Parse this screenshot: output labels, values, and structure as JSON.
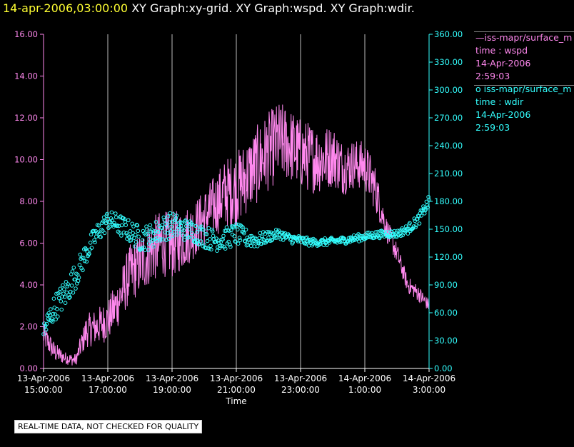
{
  "header": {
    "timestamp": "14-apr-2006,03:00:00",
    "description": "XY Graph:xy-grid.  XY Graph:wspd.  XY Graph:wdir."
  },
  "legend": {
    "wspd": {
      "line1": "iss-mapr/surface_m",
      "line2": "time : wspd",
      "line3": "14-Apr-2006",
      "line4": "2:59:03"
    },
    "wdir": {
      "line1": "iss-mapr/surface_m",
      "line2": "time : wdir",
      "line3": "14-Apr-2006",
      "line4": "2:59:03"
    }
  },
  "footer": {
    "quality_note": "REAL-TIME DATA, NOT CHECKED FOR QUALITY"
  },
  "colors": {
    "wspd": "#ff88ee",
    "wdir": "#33ffff",
    "grid": "#bbbbbb",
    "axis_left": "#ff88ee",
    "axis_right": "#33ffff",
    "timestamp": "#ffff33"
  },
  "chart_data": {
    "type": "line",
    "xlabel": "Time",
    "xlim_hours_since_start": [
      0,
      12
    ],
    "x_ticks": [
      {
        "date": "13-Apr-2006",
        "time": "15:00:00"
      },
      {
        "date": "13-Apr-2006",
        "time": "17:00:00"
      },
      {
        "date": "13-Apr-2006",
        "time": "19:00:00"
      },
      {
        "date": "13-Apr-2006",
        "time": "21:00:00"
      },
      {
        "date": "13-Apr-2006",
        "time": "23:00:00"
      },
      {
        "date": "14-Apr-2006",
        "time": "1:00:00"
      },
      {
        "date": "14-Apr-2006",
        "time": "3:00:00"
      }
    ],
    "left_axis": {
      "ylim": [
        0,
        16
      ],
      "ticks": [
        "0.00",
        "2.00",
        "4.00",
        "6.00",
        "8.00",
        "10.00",
        "12.00",
        "14.00",
        "16.00"
      ]
    },
    "right_axis": {
      "ylim": [
        0,
        360
      ],
      "ticks": [
        "0.00",
        "30.00",
        "60.00",
        "90.00",
        "120.00",
        "150.00",
        "180.00",
        "210.00",
        "240.00",
        "270.00",
        "300.00",
        "330.00",
        "360.00"
      ]
    },
    "grid": "vertical",
    "series": [
      {
        "name": "iss-mapr/surface_m time : wspd",
        "style": "line",
        "axis": "left",
        "x": [
          "13-Apr-2006 15:00:00",
          "13-Apr-2006 15:20:00",
          "13-Apr-2006 15:40:00",
          "13-Apr-2006 16:00:00",
          "13-Apr-2006 16:20:00",
          "13-Apr-2006 16:40:00",
          "13-Apr-2006 17:00:00",
          "13-Apr-2006 17:20:00",
          "13-Apr-2006 17:40:00",
          "13-Apr-2006 18:00:00",
          "13-Apr-2006 18:20:00",
          "13-Apr-2006 18:40:00",
          "13-Apr-2006 19:00:00",
          "13-Apr-2006 19:20:00",
          "13-Apr-2006 19:40:00",
          "13-Apr-2006 20:00:00",
          "13-Apr-2006 20:20:00",
          "13-Apr-2006 20:40:00",
          "13-Apr-2006 21:00:00",
          "13-Apr-2006 21:20:00",
          "13-Apr-2006 21:40:00",
          "13-Apr-2006 22:00:00",
          "13-Apr-2006 22:20:00",
          "13-Apr-2006 22:40:00",
          "13-Apr-2006 23:00:00",
          "13-Apr-2006 23:20:00",
          "13-Apr-2006 23:40:00",
          "14-Apr-2006 00:00:00",
          "14-Apr-2006 00:20:00",
          "14-Apr-2006 00:40:00",
          "14-Apr-2006 01:00:00",
          "14-Apr-2006 01:20:00",
          "14-Apr-2006 01:40:00",
          "14-Apr-2006 02:00:00",
          "14-Apr-2006 02:20:00",
          "14-Apr-2006 02:40:00",
          "14-Apr-2006 03:00:00"
        ],
        "y": [
          1.6,
          0.8,
          0.5,
          0.4,
          1.8,
          2.0,
          2.3,
          3.2,
          4.5,
          5.0,
          5.6,
          6.0,
          5.9,
          6.2,
          6.6,
          7.2,
          7.8,
          8.4,
          8.6,
          9.2,
          9.8,
          10.4,
          10.9,
          10.7,
          10.3,
          10.1,
          10.0,
          10.2,
          9.6,
          9.8,
          9.7,
          8.6,
          6.7,
          5.5,
          4.0,
          3.6,
          3.0
        ],
        "noise": [
          0.6,
          0.5,
          0.3,
          0.3,
          0.8,
          0.9,
          1.0,
          1.2,
          1.4,
          1.5,
          1.6,
          1.6,
          1.6,
          1.5,
          1.4,
          1.4,
          1.5,
          1.7,
          1.8,
          1.8,
          1.9,
          1.9,
          1.9,
          1.8,
          1.7,
          1.7,
          1.6,
          1.5,
          1.3,
          1.2,
          1.2,
          1.1,
          0.6,
          0.5,
          0.4,
          0.4,
          0.3
        ]
      },
      {
        "name": "iss-mapr/surface_m time : wdir",
        "style": "scatter",
        "axis": "right",
        "x": [
          "13-Apr-2006 15:00:00",
          "13-Apr-2006 15:20:00",
          "13-Apr-2006 15:40:00",
          "13-Apr-2006 16:00:00",
          "13-Apr-2006 16:20:00",
          "13-Apr-2006 16:40:00",
          "13-Apr-2006 17:00:00",
          "13-Apr-2006 17:20:00",
          "13-Apr-2006 17:40:00",
          "13-Apr-2006 18:00:00",
          "13-Apr-2006 18:20:00",
          "13-Apr-2006 18:40:00",
          "13-Apr-2006 19:00:00",
          "13-Apr-2006 19:20:00",
          "13-Apr-2006 19:40:00",
          "13-Apr-2006 20:00:00",
          "13-Apr-2006 20:20:00",
          "13-Apr-2006 20:40:00",
          "13-Apr-2006 21:00:00",
          "13-Apr-2006 21:20:00",
          "13-Apr-2006 21:40:00",
          "13-Apr-2006 22:00:00",
          "13-Apr-2006 22:20:00",
          "13-Apr-2006 22:40:00",
          "13-Apr-2006 23:00:00",
          "13-Apr-2006 23:20:00",
          "13-Apr-2006 23:40:00",
          "14-Apr-2006 00:00:00",
          "14-Apr-2006 00:20:00",
          "14-Apr-2006 00:40:00",
          "14-Apr-2006 01:00:00",
          "14-Apr-2006 01:20:00",
          "14-Apr-2006 01:40:00",
          "14-Apr-2006 02:00:00",
          "14-Apr-2006 02:20:00",
          "14-Apr-2006 02:40:00",
          "14-Apr-2006 03:00:00"
        ],
        "y": [
          40,
          65,
          80,
          100,
          125,
          145,
          160,
          155,
          148,
          140,
          142,
          150,
          155,
          150,
          148,
          142,
          138,
          140,
          145,
          140,
          138,
          142,
          145,
          140,
          138,
          136,
          136,
          137,
          138,
          140,
          142,
          144,
          145,
          145,
          150,
          160,
          180
        ],
        "noise": [
          12,
          14,
          16,
          14,
          12,
          12,
          10,
          12,
          12,
          14,
          14,
          14,
          14,
          12,
          12,
          12,
          12,
          12,
          12,
          10,
          8,
          6,
          5,
          5,
          5,
          4,
          4,
          4,
          4,
          4,
          4,
          4,
          4,
          4,
          5,
          6,
          6
        ]
      }
    ]
  }
}
